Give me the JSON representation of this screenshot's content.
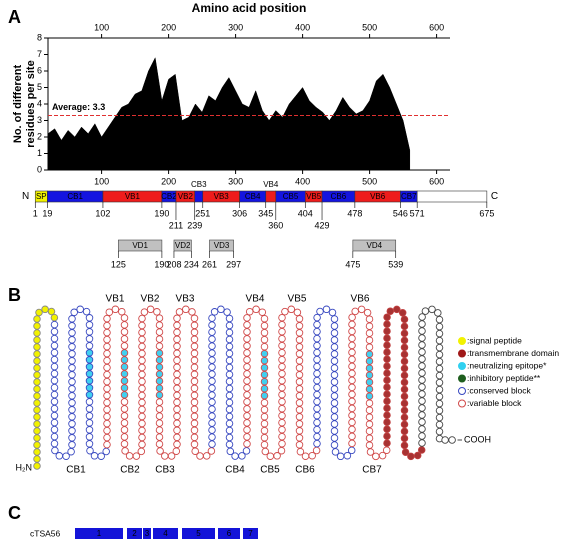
{
  "panel_labels": [
    "A",
    "B",
    "C"
  ],
  "chart_data": {
    "type": "area",
    "title": "Amino acid position",
    "y_label": [
      "No. of different",
      "residues per site"
    ],
    "x": [
      20,
      30,
      40,
      50,
      60,
      70,
      80,
      90,
      100,
      110,
      120,
      130,
      140,
      150,
      160,
      170,
      180,
      190,
      200,
      210,
      220,
      230,
      240,
      250,
      260,
      270,
      280,
      290,
      300,
      310,
      320,
      330,
      340,
      350,
      360,
      370,
      380,
      390,
      400,
      410,
      420,
      430,
      440,
      450,
      460,
      470,
      480,
      490,
      500,
      510,
      520,
      530,
      540,
      550,
      560
    ],
    "values": [
      2.2,
      2.5,
      1.8,
      2.4,
      2.0,
      2.6,
      2.2,
      2.8,
      2.0,
      2.6,
      3.2,
      3.8,
      4.0,
      4.6,
      4.8,
      6.0,
      6.8,
      4.2,
      5.5,
      5.8,
      3.0,
      3.2,
      4.0,
      3.5,
      4.5,
      4.2,
      5.0,
      5.6,
      4.8,
      4.0,
      3.8,
      4.8,
      3.6,
      3.0,
      3.6,
      3.2,
      4.0,
      4.5,
      5.0,
      4.2,
      3.8,
      3.5,
      3.0,
      3.6,
      4.4,
      3.8,
      3.4,
      3.6,
      4.2,
      5.4,
      5.8,
      5.0,
      4.0,
      3.0,
      1.2
    ],
    "color": "#000000",
    "xlim": [
      20,
      620
    ],
    "xticks": [
      100,
      200,
      300,
      400,
      500,
      600
    ],
    "ylim": [
      0,
      8
    ],
    "yticks": [
      0,
      1,
      2,
      3,
      4,
      5,
      6,
      7,
      8
    ],
    "reference_line": {
      "value": 3.3,
      "label": "Average: 3.3",
      "color": "#e03030"
    }
  },
  "domain_map": {
    "start_label": "N",
    "end_label": "C",
    "boundaries": [
      1,
      19,
      102,
      190,
      211,
      239,
      251,
      306,
      345,
      360,
      404,
      429,
      478,
      546,
      571,
      675
    ],
    "blocks": [
      {
        "label": "SP",
        "kind": "signal"
      },
      {
        "label": "CB1",
        "kind": "conserved"
      },
      {
        "label": "VB1",
        "kind": "variable"
      },
      {
        "label": "CB2",
        "kind": "conserved"
      },
      {
        "label": "VB2",
        "kind": "variable"
      },
      {
        "label": "CB3",
        "kind": "conserved"
      },
      {
        "label": "VB3",
        "kind": "variable"
      },
      {
        "label": "CB4",
        "kind": "conserved"
      },
      {
        "label": "VB4",
        "kind": "variable"
      },
      {
        "label": "CB5",
        "kind": "conserved"
      },
      {
        "label": "VB5",
        "kind": "variable"
      },
      {
        "label": "CB6",
        "kind": "conserved"
      },
      {
        "label": "VB6",
        "kind": "variable"
      },
      {
        "label": "CB7",
        "kind": "conserved"
      },
      {
        "label": null,
        "kind": "none"
      }
    ],
    "colors": {
      "signal": "#f2f200",
      "conserved": "#1414e0",
      "variable": "#ee1c1c",
      "none": "#ffffff"
    },
    "variable_domains": [
      {
        "label": "VD1",
        "start": 125,
        "end": 190
      },
      {
        "label": "VD2",
        "start": 208,
        "end": 234
      },
      {
        "label": "VD3",
        "start": 261,
        "end": 297
      },
      {
        "label": "VD4",
        "start": 475,
        "end": 539
      }
    ]
  },
  "topology": {
    "variable_labels": [
      "VB1",
      "VB2",
      "VB3",
      "VB4",
      "VB5",
      "VB6"
    ],
    "conserved_labels": [
      "CB1",
      "CB2",
      "CB3",
      "CB4",
      "CB5",
      "CB6",
      "CB7"
    ],
    "n_term": "H₂N",
    "c_term": "COOH",
    "legend": [
      ":signal peptide",
      ":transmembrane domain",
      ":neutralizing epitope*",
      ":inhibitory peptide**",
      ":conserved block",
      ":variable block"
    ]
  },
  "construct": {
    "name": "cTSA56",
    "segments": [
      "1",
      "2",
      "3",
      "4",
      "5",
      "6",
      "7"
    ]
  }
}
